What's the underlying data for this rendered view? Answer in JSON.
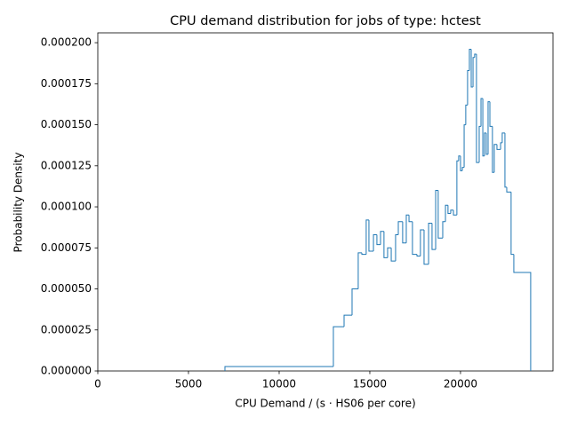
{
  "chart_data": {
    "type": "histogram",
    "title": "CPU demand distribution for jobs of type: hctest",
    "xlabel": "CPU Demand / (s · HS06 per core)",
    "ylabel": "Probability Density",
    "color": "#1f77b4",
    "bins": [
      7010,
      12990,
      13580,
      14020,
      14360,
      14560,
      14800,
      14950,
      15200,
      15390,
      15590,
      15780,
      15980,
      16180,
      16420,
      16570,
      16810,
      17010,
      17160,
      17350,
      17600,
      17790,
      17990,
      18240,
      18430,
      18630,
      18770,
      19020,
      19170,
      19310,
      19460,
      19610,
      19800,
      19900,
      20000,
      20100,
      20200,
      20290,
      20390,
      20490,
      20590,
      20690,
      20780,
      20880,
      21030,
      21130,
      21230,
      21320,
      21420,
      21520,
      21620,
      21760,
      21860,
      22010,
      22210,
      22300,
      22450,
      22550,
      22790,
      22940,
      23870
    ],
    "values": [
      2.7e-06,
      2.7e-05,
      3.4e-05,
      5e-05,
      7.2e-05,
      7.1e-05,
      9.2e-05,
      7.3e-05,
      8.3e-05,
      7.7e-05,
      8.5e-05,
      6.9e-05,
      7.5e-05,
      6.7e-05,
      8.3e-05,
      9.1e-05,
      7.8e-05,
      9.5e-05,
      9.1e-05,
      7.1e-05,
      7e-05,
      8.6e-05,
      6.5e-05,
      9e-05,
      7.4e-05,
      0.00011,
      8.1e-05,
      9.1e-05,
      0.000101,
      9.6e-05,
      9.8e-05,
      9.5e-05,
      0.000128,
      0.000131,
      0.000122,
      0.000124,
      0.00015,
      0.000162,
      0.000183,
      0.000196,
      0.000173,
      0.000191,
      0.000193,
      0.000127,
      0.000149,
      0.000166,
      0.000131,
      0.000145,
      0.000132,
      0.000164,
      0.000149,
      0.000121,
      0.000138,
      0.000135,
      0.000139,
      0.000145,
      0.000112,
      0.000109,
      7.1e-05,
      6e-05
    ],
    "xlim": [
      0,
      25100
    ],
    "ylim": [
      0,
      0.000206
    ],
    "xticks": [
      0,
      5000,
      10000,
      15000,
      20000
    ],
    "yticks": [
      {
        "value": 0,
        "label": "0.000000"
      },
      {
        "value": 2.5e-05,
        "label": "0.000025"
      },
      {
        "value": 5e-05,
        "label": "0.000050"
      },
      {
        "value": 7.5e-05,
        "label": "0.000075"
      },
      {
        "value": 0.0001,
        "label": "0.000100"
      },
      {
        "value": 0.000125,
        "label": "0.000125"
      },
      {
        "value": 0.00015,
        "label": "0.000150"
      },
      {
        "value": 0.000175,
        "label": "0.000175"
      },
      {
        "value": 0.0002,
        "label": "0.000200"
      }
    ]
  }
}
